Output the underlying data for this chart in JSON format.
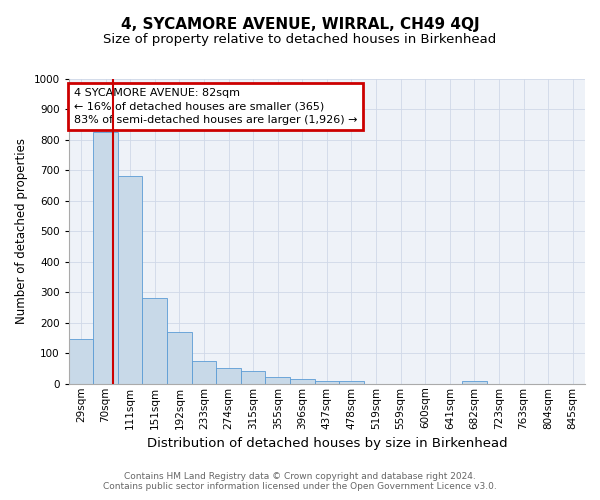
{
  "title": "4, SYCAMORE AVENUE, WIRRAL, CH49 4QJ",
  "subtitle": "Size of property relative to detached houses in Birkenhead",
  "xlabel": "Distribution of detached houses by size in Birkenhead",
  "ylabel": "Number of detached properties",
  "categories": [
    "29sqm",
    "70sqm",
    "111sqm",
    "151sqm",
    "192sqm",
    "233sqm",
    "274sqm",
    "315sqm",
    "355sqm",
    "396sqm",
    "437sqm",
    "478sqm",
    "519sqm",
    "559sqm",
    "600sqm",
    "641sqm",
    "682sqm",
    "723sqm",
    "763sqm",
    "804sqm",
    "845sqm"
  ],
  "bar_heights": [
    147,
    826,
    683,
    280,
    170,
    76,
    51,
    43,
    22,
    14,
    10,
    8,
    0,
    0,
    0,
    0,
    9,
    0,
    0,
    0,
    0
  ],
  "bar_color": "#c8d9e8",
  "bar_edge_color": "#5b9bd5",
  "ylim": [
    0,
    1000
  ],
  "yticks": [
    0,
    100,
    200,
    300,
    400,
    500,
    600,
    700,
    800,
    900,
    1000
  ],
  "property_line_x": 1.3,
  "property_line_color": "#cc0000",
  "annotation_text": "4 SYCAMORE AVENUE: 82sqm\n← 16% of detached houses are smaller (365)\n83% of semi-detached houses are larger (1,926) →",
  "annotation_box_color": "#cc0000",
  "footnote1": "Contains HM Land Registry data © Crown copyright and database right 2024.",
  "footnote2": "Contains public sector information licensed under the Open Government Licence v3.0.",
  "title_fontsize": 11,
  "subtitle_fontsize": 9.5,
  "xlabel_fontsize": 9.5,
  "ylabel_fontsize": 8.5,
  "tick_fontsize": 7.5,
  "annotation_fontsize": 8,
  "footnote_fontsize": 6.5,
  "grid_color": "#d0d8e8",
  "background_color": "#eef2f8"
}
